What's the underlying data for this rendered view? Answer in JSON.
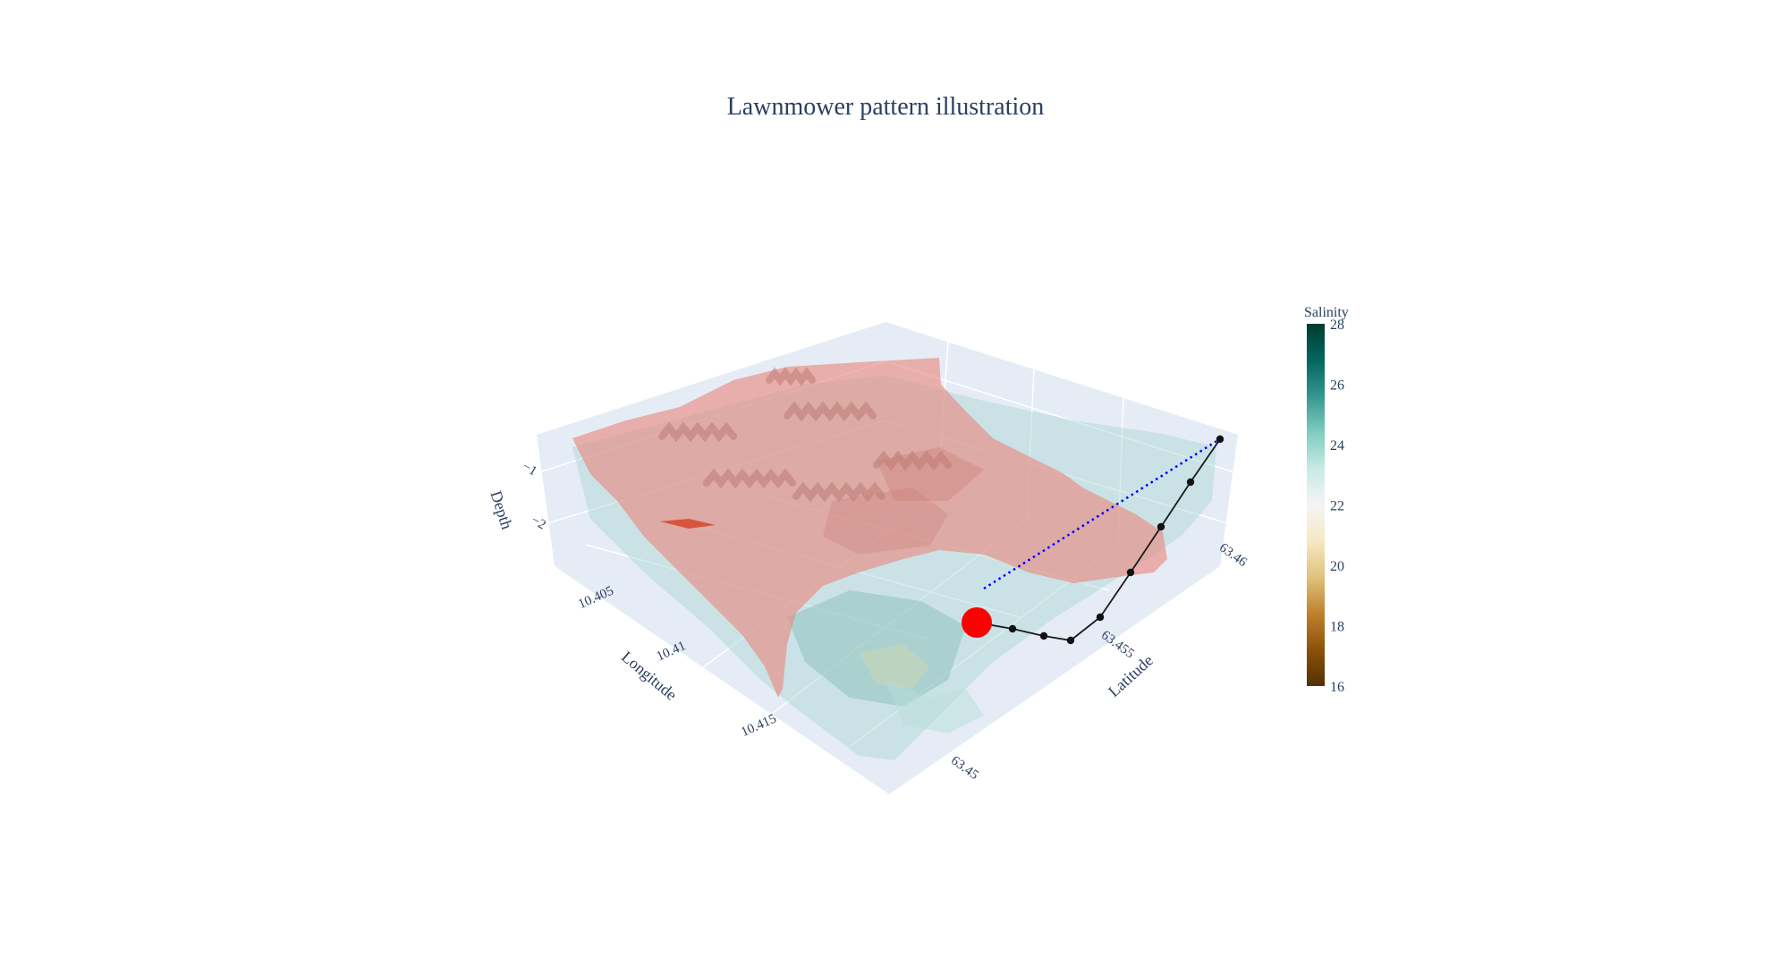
{
  "chart_data": {
    "type": "surface3d",
    "title": "Lawnmower pattern illustration",
    "axes": {
      "x": {
        "label": "Longitude",
        "ticks": [
          "10.405",
          "10.41",
          "10.415"
        ]
      },
      "y": {
        "label": "Latitude",
        "ticks": [
          "63.45",
          "63.455",
          "63.46"
        ]
      },
      "z": {
        "label": "Depth",
        "ticks": [
          "−1",
          "−2"
        ]
      }
    },
    "colorbar": {
      "title": "Salinity",
      "range": [
        16,
        28
      ],
      "ticks": [
        "28",
        "26",
        "24",
        "22",
        "20",
        "18",
        "16"
      ],
      "colorscale": [
        "#543005",
        "#8c510a",
        "#bf812d",
        "#dfc27d",
        "#f6e8c3",
        "#f5f5f5",
        "#c7eae5",
        "#80cdc1",
        "#35978f",
        "#01665e",
        "#003c30"
      ]
    },
    "series": [
      {
        "type": "surface",
        "color": "#e8877c"
      },
      {
        "type": "surface",
        "color": "#a9d6d2"
      },
      {
        "type": "path",
        "color": "#000000",
        "points": 8
      },
      {
        "type": "current-position-marker",
        "color": "#ff0000"
      },
      {
        "type": "dotted-line",
        "color": "#0000ff"
      }
    ]
  }
}
